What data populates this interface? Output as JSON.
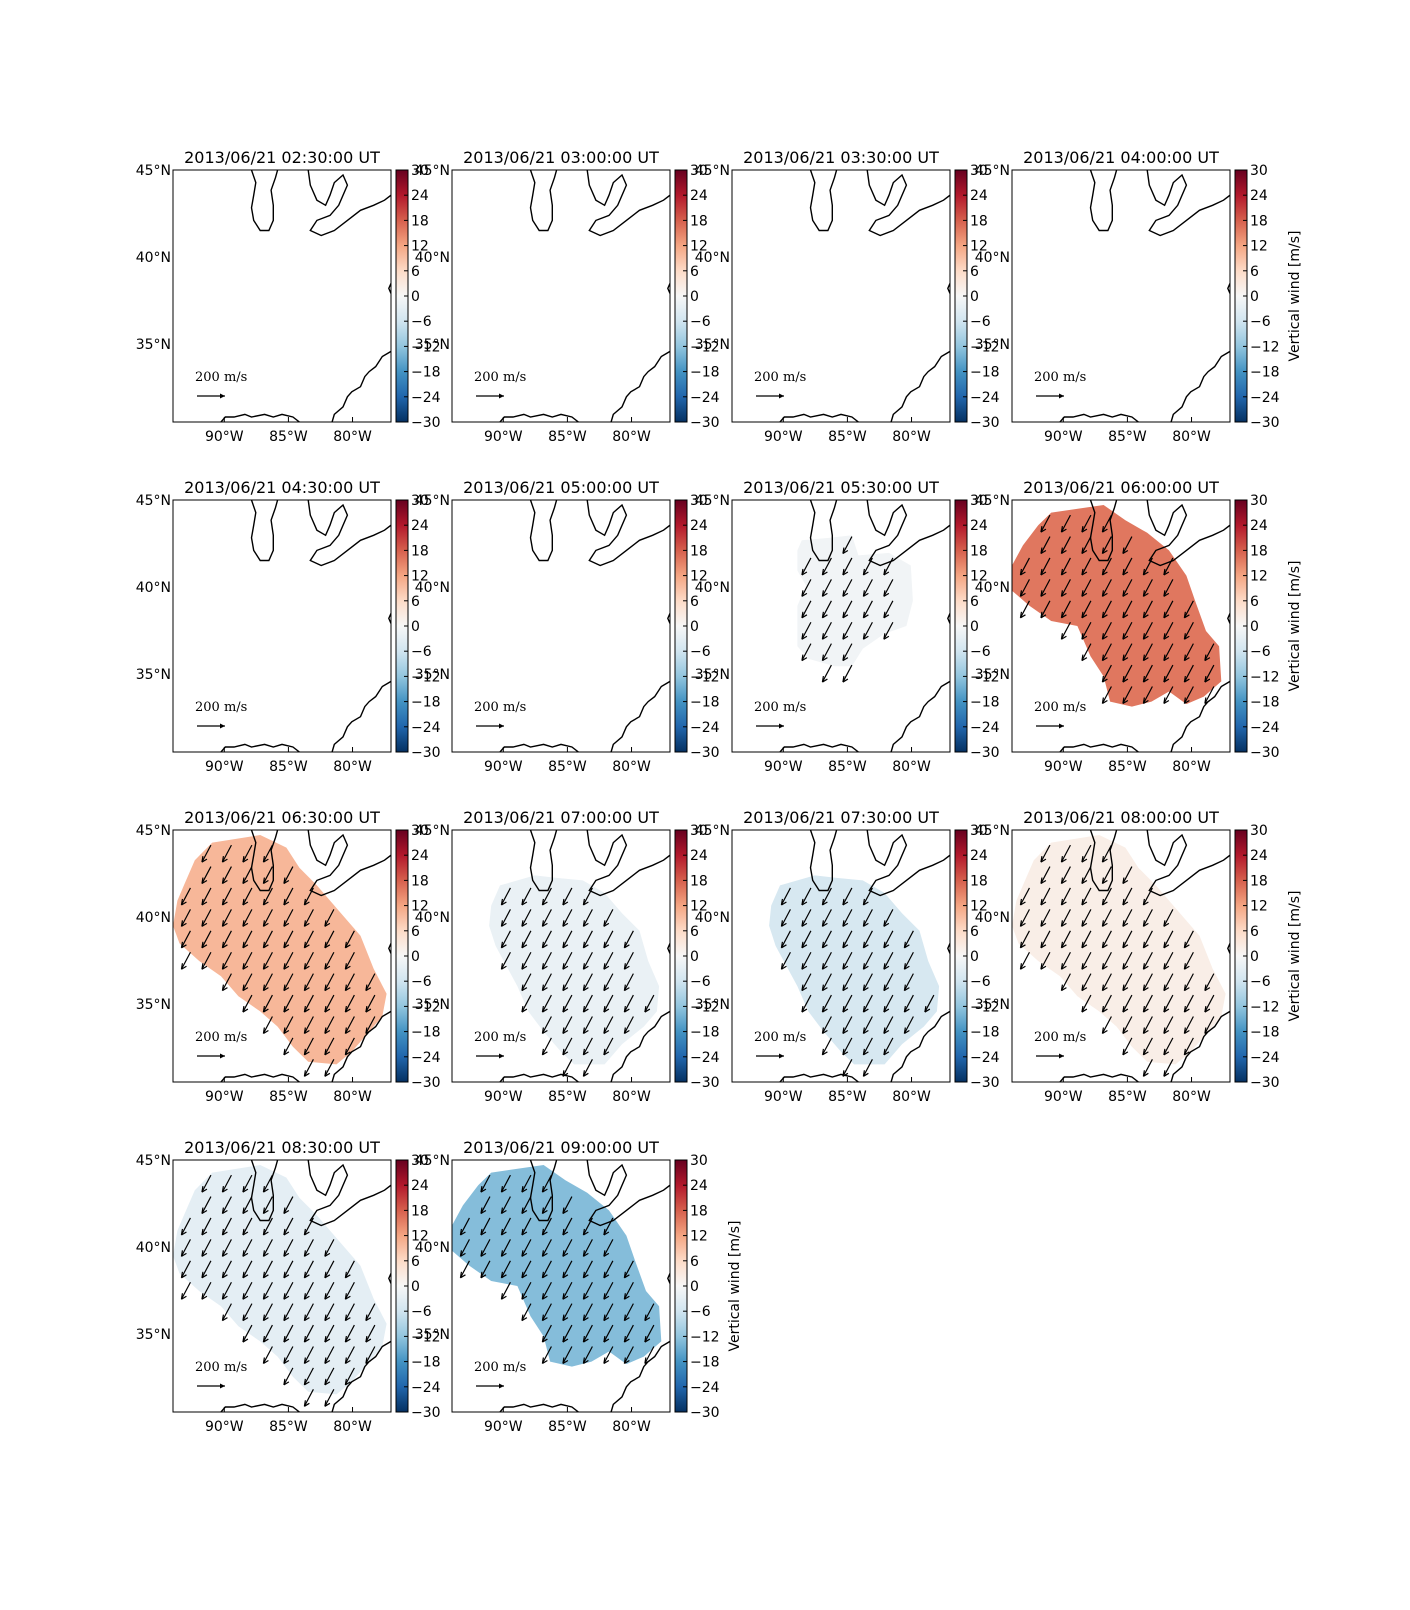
{
  "chart_data": {
    "type": "heatmap",
    "layout": {
      "rows": 4,
      "cols": 4
    },
    "colorbar": {
      "label": "Vertical wind [m/s]",
      "range": [
        -30,
        30
      ],
      "ticks": [
        "30",
        "24",
        "18",
        "12",
        "6",
        "0",
        "−6",
        "−12",
        "−18",
        "−24",
        "−30"
      ],
      "cmap": "RdBu_r"
    },
    "axes": {
      "lon_ticks": [
        "90°W",
        "85°W",
        "80°W"
      ],
      "lat_ticks": [
        "45°N",
        "40°N",
        "35°N"
      ],
      "lon_range": [
        -94,
        -77
      ],
      "lat_range": [
        30.5,
        45
      ]
    },
    "arrow_scale_label": "200",
    "arrow_scale_unit_num": "m",
    "arrow_scale_unit_den": "s",
    "wind_direction_note": "",
    "panels": [
      {
        "title": "2013/06/21 02:30:00 UT",
        "value": null,
        "region": "none"
      },
      {
        "title": "2013/06/21 03:00:00 UT",
        "value": null,
        "region": "none"
      },
      {
        "title": "2013/06/21 03:30:00 UT",
        "value": null,
        "region": "none"
      },
      {
        "title": "2013/06/21 04:00:00 UT",
        "value": null,
        "region": "none",
        "colorbar_label": true
      },
      {
        "title": "2013/06/21 04:30:00 UT",
        "value": null,
        "region": "none"
      },
      {
        "title": "2013/06/21 05:00:00 UT",
        "value": null,
        "region": "none"
      },
      {
        "title": "2013/06/21 05:30:00 UT",
        "value": -1,
        "region": "small"
      },
      {
        "title": "2013/06/21 06:00:00 UT",
        "value": 16,
        "region": "large",
        "colorbar_label": true
      },
      {
        "title": "2013/06/21 06:30:00 UT",
        "value": 10,
        "region": "west"
      },
      {
        "title": "2013/06/21 07:00:00 UT",
        "value": -2,
        "region": "medium"
      },
      {
        "title": "2013/06/21 07:30:00 UT",
        "value": -5,
        "region": "medium"
      },
      {
        "title": "2013/06/21 08:00:00 UT",
        "value": 2,
        "region": "west",
        "colorbar_label": true
      },
      {
        "title": "2013/06/21 08:30:00 UT",
        "value": -3,
        "region": "west"
      },
      {
        "title": "2013/06/21 09:00:00 UT",
        "value": -13,
        "region": "large",
        "colorbar_label": true
      }
    ]
  }
}
